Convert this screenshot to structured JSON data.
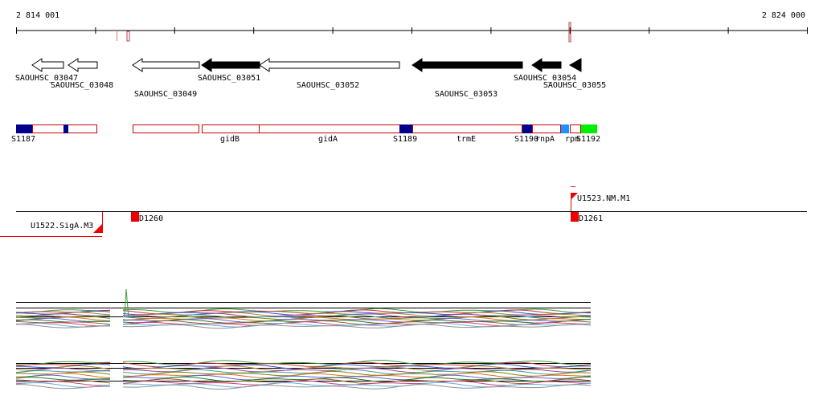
{
  "ruler": {
    "start_label": "2 814 001",
    "end_label": "2 824 000"
  },
  "genes": [
    {
      "label": "SAOUHSC_03047"
    },
    {
      "label": "SAOUHSC_03048"
    },
    {
      "label": "SAOUHSC_03049"
    },
    {
      "label": "SAOUHSC_03051"
    },
    {
      "label": "SAOUHSC_03052"
    },
    {
      "label": "SAOUHSC_03053"
    },
    {
      "label": "SAOUHSC_03054"
    },
    {
      "label": "SAOUHSC_03055"
    }
  ],
  "features": [
    {
      "label": "S1187"
    },
    {
      "label": "gidB"
    },
    {
      "label": "gidA"
    },
    {
      "label": "S1189"
    },
    {
      "label": "trmE"
    },
    {
      "label": "S1190"
    },
    {
      "label": "rnpA"
    },
    {
      "label": "rpm"
    },
    {
      "label": "S1192"
    }
  ],
  "transcripts": [
    {
      "label": "U1522.SigA.M3"
    },
    {
      "label": "D1260"
    },
    {
      "label": "U1523.NM.M1"
    },
    {
      "label": "D1261"
    }
  ]
}
